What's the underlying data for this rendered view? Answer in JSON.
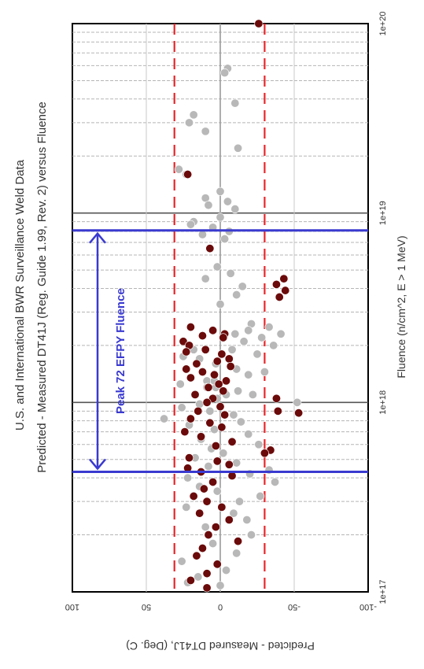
{
  "chart_data": {
    "type": "scatter",
    "title_line1": "U.S. and International BWR Surveillance Weld Data",
    "title_line2": "Predicted - Measured DT41J (Reg. Guide 1.99, Rev. 2) versus Fluence",
    "xlabel": "Fluence (n/cm^2, E > 1 MeV)",
    "ylabel": "Predicted - Measured DT41J, (Deg. C)",
    "x_scale": "log",
    "xlim": [
      1e+17,
      1e+20
    ],
    "ylim": [
      -100,
      100
    ],
    "x_ticks": [
      "1e+17",
      "1e+18",
      "1e+19",
      "1e+20"
    ],
    "y_ticks": [
      "100",
      "50",
      "0",
      "-50",
      "-100"
    ],
    "y_tick_values": [
      100,
      50,
      0,
      -50,
      -100
    ],
    "grid": true,
    "reference_lines": {
      "upper_limit": 31,
      "lower_limit": -30,
      "color": "#e8262a"
    },
    "annotation": {
      "label": "Peak 72 EFPY Fluence",
      "low_fluence": 4.3e+17,
      "high_fluence": 8.1e+18,
      "color": "#3a3ad0"
    },
    "series": [
      {
        "color": "#6b0a0a",
        "points": [
          [
            1e+20,
            -26
          ],
          [
            1.6e+19,
            22
          ],
          [
            6.5e+18,
            7
          ],
          [
            4.5e+18,
            -43
          ],
          [
            4.2e+18,
            -38
          ],
          [
            3.9e+18,
            -44
          ],
          [
            3.6e+18,
            -40
          ],
          [
            2.5e+18,
            20
          ],
          [
            2.4e+18,
            5
          ],
          [
            2.3e+18,
            -3
          ],
          [
            2.25e+18,
            12
          ],
          [
            2.2e+18,
            -2
          ],
          [
            2.1e+18,
            25
          ],
          [
            2e+18,
            21
          ],
          [
            1.9e+18,
            10
          ],
          [
            1.85e+18,
            23
          ],
          [
            1.8e+18,
            -1
          ],
          [
            1.7e+18,
            -6
          ],
          [
            1.65e+18,
            2
          ],
          [
            1.6e+18,
            16
          ],
          [
            1.55e+18,
            -7
          ],
          [
            1.5e+18,
            23
          ],
          [
            1.45e+18,
            12
          ],
          [
            1.4e+18,
            4
          ],
          [
            1.35e+18,
            20
          ],
          [
            1.3e+18,
            -4
          ],
          [
            1.25e+18,
            1
          ],
          [
            1.2e+18,
            8
          ],
          [
            1.15e+18,
            -2
          ],
          [
            1.1e+18,
            17
          ],
          [
            1.05e+18,
            5
          ],
          [
            1e+18,
            9
          ],
          [
            9.5e+17,
            0
          ],
          [
            9e+17,
            15
          ],
          [
            8.6e+17,
            -3
          ],
          [
            8.2e+17,
            20
          ],
          [
            7.8e+17,
            7
          ],
          [
            7.4e+17,
            -1
          ],
          [
            7e+17,
            24
          ],
          [
            6.6e+17,
            13
          ],
          [
            6.2e+17,
            -8
          ],
          [
            5.9e+17,
            3
          ],
          [
            5.6e+17,
            -34
          ],
          [
            5.4e+17,
            -30
          ],
          [
            5.1e+17,
            21
          ],
          [
            4.9e+17,
            2
          ],
          [
            4.7e+17,
            -6
          ],
          [
            4.5e+17,
            22
          ],
          [
            4.3e+17,
            13
          ],
          [
            4.1e+17,
            -8
          ],
          [
            3.8e+17,
            5
          ],
          [
            3.5e+17,
            11
          ],
          [
            3.2e+17,
            18
          ],
          [
            3e+17,
            9
          ],
          [
            2.8e+17,
            -1
          ],
          [
            2.6e+17,
            14
          ],
          [
            2.4e+17,
            -6
          ],
          [
            2.2e+17,
            3
          ],
          [
            2e+17,
            8
          ],
          [
            1.85e+17,
            -12
          ],
          [
            1.7e+17,
            12
          ],
          [
            1.55e+17,
            16
          ],
          [
            1.4e+17,
            2
          ],
          [
            1.25e+17,
            9
          ],
          [
            1.15e+17,
            20
          ],
          [
            1.05e+17,
            9
          ],
          [
            9e+17,
            -39
          ],
          [
            8.8e+17,
            -53
          ],
          [
            1.05e+18,
            -38
          ]
        ]
      },
      {
        "color": "#b8b8b8",
        "points": [
          [
            5.8e+19,
            -5
          ],
          [
            5.5e+19,
            -3
          ],
          [
            3.8e+19,
            -10
          ],
          [
            3.3e+19,
            18
          ],
          [
            3e+19,
            21
          ],
          [
            2.7e+19,
            10
          ],
          [
            2.2e+19,
            -12
          ],
          [
            1.7e+19,
            28
          ],
          [
            1.6e+19,
            23
          ],
          [
            1.3e+19,
            0
          ],
          [
            1.2e+19,
            10
          ],
          [
            1.15e+19,
            -5
          ],
          [
            1.1e+19,
            8
          ],
          [
            1.05e+19,
            -10
          ],
          [
            9.5e+18,
            0
          ],
          [
            9e+18,
            18
          ],
          [
            8.7e+18,
            20
          ],
          [
            8.4e+18,
            5
          ],
          [
            8e+18,
            -6
          ],
          [
            7.7e+18,
            12
          ],
          [
            7.3e+18,
            -3
          ],
          [
            5.2e+18,
            2
          ],
          [
            4.8e+18,
            -7
          ],
          [
            4.5e+18,
            10
          ],
          [
            4.1e+18,
            -15
          ],
          [
            3.7e+18,
            -11
          ],
          [
            3.3e+18,
            0
          ],
          [
            2.6e+18,
            -21
          ],
          [
            2.5e+18,
            -33
          ],
          [
            2.4e+18,
            -19
          ],
          [
            2.3e+18,
            -41
          ],
          [
            2.2e+18,
            -28
          ],
          [
            2.1e+18,
            -16
          ],
          [
            2e+18,
            -36
          ],
          [
            1.9e+18,
            -8
          ],
          [
            1.8e+18,
            -25
          ],
          [
            1.7e+18,
            14
          ],
          [
            1.6e+18,
            3
          ],
          [
            1.5e+18,
            -11
          ],
          [
            1.45e+18,
            -30
          ],
          [
            1.4e+18,
            -19
          ],
          [
            1.3e+18,
            9
          ],
          [
            1.25e+18,
            27
          ],
          [
            1.2e+18,
            9
          ],
          [
            1.15e+18,
            -12
          ],
          [
            1.1e+18,
            -22
          ],
          [
            1.05e+18,
            2
          ],
          [
            1e+18,
            -52
          ],
          [
            9.8e+17,
            14
          ],
          [
            9.4e+17,
            26
          ],
          [
            9e+17,
            7
          ],
          [
            8.6e+17,
            -9
          ],
          [
            8.2e+17,
            38
          ],
          [
            7.9e+17,
            -14
          ],
          [
            7.6e+17,
            21
          ],
          [
            7.2e+17,
            4
          ],
          [
            6.8e+17,
            -19
          ],
          [
            6.4e+17,
            13
          ],
          [
            6e+17,
            -26
          ],
          [
            5.7e+17,
            6
          ],
          [
            5.4e+17,
            -2
          ],
          [
            5.1e+17,
            17
          ],
          [
            4.8e+17,
            -11
          ],
          [
            4.6e+17,
            8
          ],
          [
            4.4e+17,
            -33
          ],
          [
            4.2e+17,
            -20
          ],
          [
            4e+17,
            22
          ],
          [
            3.8e+17,
            -37
          ],
          [
            3.6e+17,
            14
          ],
          [
            3.4e+17,
            2
          ],
          [
            3.2e+17,
            -27
          ],
          [
            3e+17,
            -13
          ],
          [
            2.8e+17,
            23
          ],
          [
            2.6e+17,
            -9
          ],
          [
            2.4e+17,
            -18
          ],
          [
            2.2e+17,
            10
          ],
          [
            2e+17,
            -21
          ],
          [
            1.8e+17,
            5
          ],
          [
            1.6e+17,
            -11
          ],
          [
            1.45e+17,
            26
          ],
          [
            1.3e+17,
            -4
          ],
          [
            1.2e+17,
            15
          ],
          [
            1.12e+17,
            22
          ],
          [
            1.08e+17,
            0
          ],
          [
            1.2e+18,
            3
          ],
          [
            1.3e+18,
            4
          ],
          [
            1.1e+18,
            -4
          ],
          [
            1.9e+18,
            18
          ],
          [
            2.3e+18,
            -10
          ],
          [
            1.75e+18,
            25
          ]
        ]
      }
    ]
  }
}
